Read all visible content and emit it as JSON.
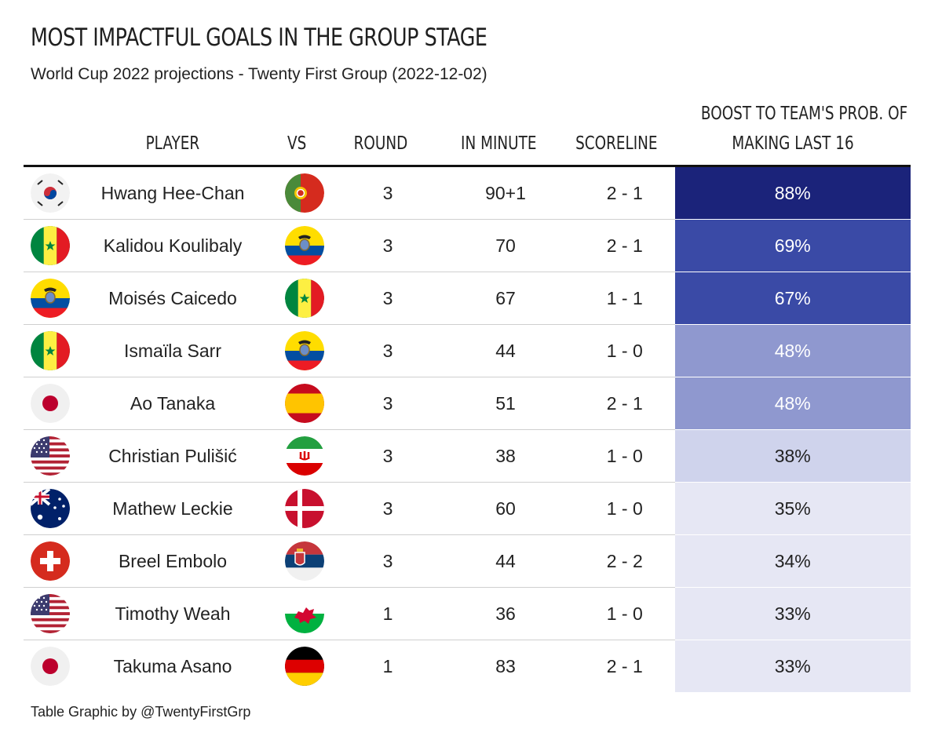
{
  "title": "MOST IMPACTFUL GOALS IN THE GROUP STAGE",
  "subtitle": "World Cup 2022 projections - Twenty First Group (2022-12-02)",
  "footer": "Table Graphic by @TwentyFirstGrp",
  "columns": {
    "player": "PLAYER",
    "vs": "VS",
    "round": "ROUND",
    "minute": "IN MINUTE",
    "scoreline": "SCORELINE",
    "boost_line1": "BOOST TO TEAM'S PROB. OF",
    "boost_line2": "MAKING LAST 16"
  },
  "colors": {
    "scale": [
      "#1b237a",
      "#3a4aa6",
      "#8f98cf",
      "#cfd3ec",
      "#e6e7f4"
    ]
  },
  "chart_data": {
    "type": "table",
    "rows": [
      {
        "flag": "south-korea",
        "player": "Hwang Hee-Chan",
        "vs": "portugal",
        "round": "3",
        "minute": "90+1",
        "scoreline": "2 - 1",
        "boost": "88%",
        "boost_value": 88
      },
      {
        "flag": "senegal",
        "player": "Kalidou Koulibaly",
        "vs": "ecuador",
        "round": "3",
        "minute": "70",
        "scoreline": "2 - 1",
        "boost": "69%",
        "boost_value": 69
      },
      {
        "flag": "ecuador",
        "player": "Moisés Caicedo",
        "vs": "senegal",
        "round": "3",
        "minute": "67",
        "scoreline": "1 - 1",
        "boost": "67%",
        "boost_value": 67
      },
      {
        "flag": "senegal",
        "player": "Ismaïla Sarr",
        "vs": "ecuador",
        "round": "3",
        "minute": "44",
        "scoreline": "1 - 0",
        "boost": "48%",
        "boost_value": 48
      },
      {
        "flag": "japan",
        "player": "Ao Tanaka",
        "vs": "spain",
        "round": "3",
        "minute": "51",
        "scoreline": "2 - 1",
        "boost": "48%",
        "boost_value": 48
      },
      {
        "flag": "usa",
        "player": "Christian Pulišić",
        "vs": "iran",
        "round": "3",
        "minute": "38",
        "scoreline": "1 - 0",
        "boost": "38%",
        "boost_value": 38
      },
      {
        "flag": "australia",
        "player": "Mathew Leckie",
        "vs": "denmark",
        "round": "3",
        "minute": "60",
        "scoreline": "1 - 0",
        "boost": "35%",
        "boost_value": 35
      },
      {
        "flag": "switzerland",
        "player": "Breel Embolo",
        "vs": "serbia",
        "round": "3",
        "minute": "44",
        "scoreline": "2 - 2",
        "boost": "34%",
        "boost_value": 34
      },
      {
        "flag": "usa",
        "player": "Timothy Weah",
        "vs": "wales",
        "round": "1",
        "minute": "36",
        "scoreline": "1 - 0",
        "boost": "33%",
        "boost_value": 33
      },
      {
        "flag": "japan",
        "player": "Takuma Asano",
        "vs": "germany",
        "round": "1",
        "minute": "83",
        "scoreline": "2 - 1",
        "boost": "33%",
        "boost_value": 33
      }
    ]
  }
}
